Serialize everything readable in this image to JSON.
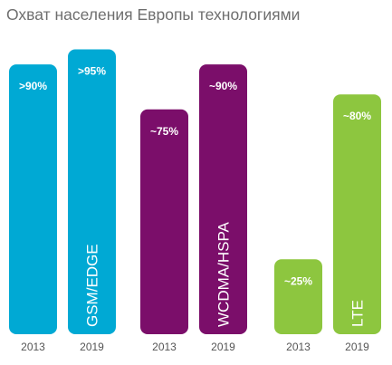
{
  "chart_data": {
    "type": "bar",
    "title": "Охват населения Европы технологиями",
    "xlabel": "",
    "ylabel": "",
    "ylim": [
      0,
      100
    ],
    "grid": false,
    "legend": "none",
    "groups": [
      {
        "name": "GSM/EDGE",
        "color": "#00a9d4",
        "bars": [
          {
            "year": "2013",
            "value": 90,
            "label": ">90%"
          },
          {
            "year": "2019",
            "value": 95,
            "label": ">95%"
          }
        ]
      },
      {
        "name": "WCDMA/HSPA",
        "color": "#7b0e6a",
        "bars": [
          {
            "year": "2013",
            "value": 75,
            "label": "~75%"
          },
          {
            "year": "2019",
            "value": 90,
            "label": "~90%"
          }
        ]
      },
      {
        "name": "LTE",
        "color": "#8dc63f",
        "bars": [
          {
            "year": "2013",
            "value": 25,
            "label": "~25%"
          },
          {
            "year": "2019",
            "value": 80,
            "label": "~80%"
          }
        ]
      }
    ]
  }
}
